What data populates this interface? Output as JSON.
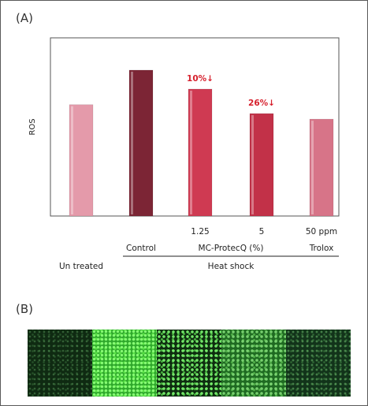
{
  "panel_labels": {
    "a": "(A)",
    "b": "(B)"
  },
  "colors": {
    "untreated": "#e49aaa",
    "control": "#7c2535",
    "mc_125": "#cf3a52",
    "mc_5": "#c23148",
    "trolox": "#d77488",
    "annotation": "#d61f2c",
    "axis": "#555555"
  },
  "chart_data": {
    "type": "bar",
    "categories": [
      "Un treated",
      "Control",
      "1.25",
      "5",
      "50 ppm"
    ],
    "values": [
      1.0,
      1.31,
      1.14,
      0.92,
      0.87
    ],
    "ylabel": "ROS",
    "ylim": [
      0,
      1.6
    ],
    "grid": false,
    "annotations": [
      {
        "category": "1.25",
        "text": "10%↓"
      },
      {
        "category": "5",
        "text": "26%↓"
      }
    ],
    "group_labels": {
      "row1": [
        "Control",
        "MC-ProtecQ (%)",
        "Trolox"
      ],
      "row2": [
        "Un treated",
        "Heat shock"
      ]
    }
  },
  "micrograph": {
    "panels": [
      "untreated",
      "control",
      "mc_1.25",
      "mc_5",
      "trolox"
    ]
  }
}
